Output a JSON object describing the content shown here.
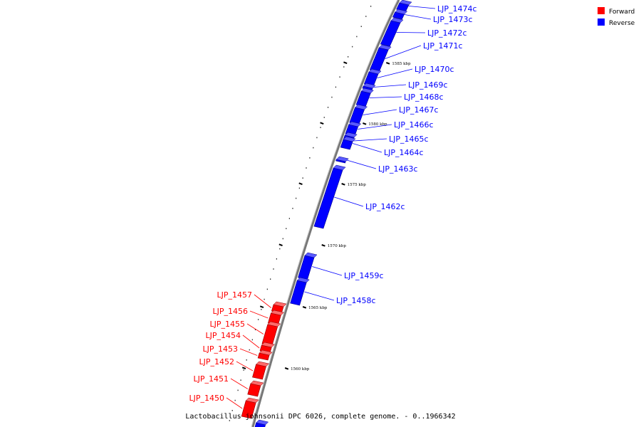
{
  "caption": "Lactobacillus johnsonii DPC 6026, complete genome. - 0..1966342",
  "legend": [
    {
      "label": "Forward",
      "color": "#ff0000"
    },
    {
      "label": "Reverse",
      "color": "#0000ff"
    }
  ],
  "colors": {
    "forward": "#ff0000",
    "reverse": "#0000ff",
    "axis": "#888888"
  },
  "ticks": [
    "1560 kbp",
    "1565 kbp",
    "1570 kbp",
    "1575 kbp",
    "1580 kbp",
    "1585 kbp"
  ],
  "reverse_genes": [
    "LJP_1474c",
    "LJP_1473c",
    "LJP_1472c",
    "LJP_1471c",
    "LJP_1470c",
    "LJP_1469c",
    "LJP_1468c",
    "LJP_1467c",
    "LJP_1466c",
    "LJP_1465c",
    "LJP_1464c",
    "LJP_1463c",
    "LJP_1462c",
    "LJP_1459c",
    "LJP_1458c"
  ],
  "forward_genes": [
    "LJP_1457",
    "LJP_1456",
    "LJP_1455",
    "LJP_1454",
    "LJP_1453",
    "LJP_1452",
    "LJP_1451",
    "LJP_1450"
  ]
}
